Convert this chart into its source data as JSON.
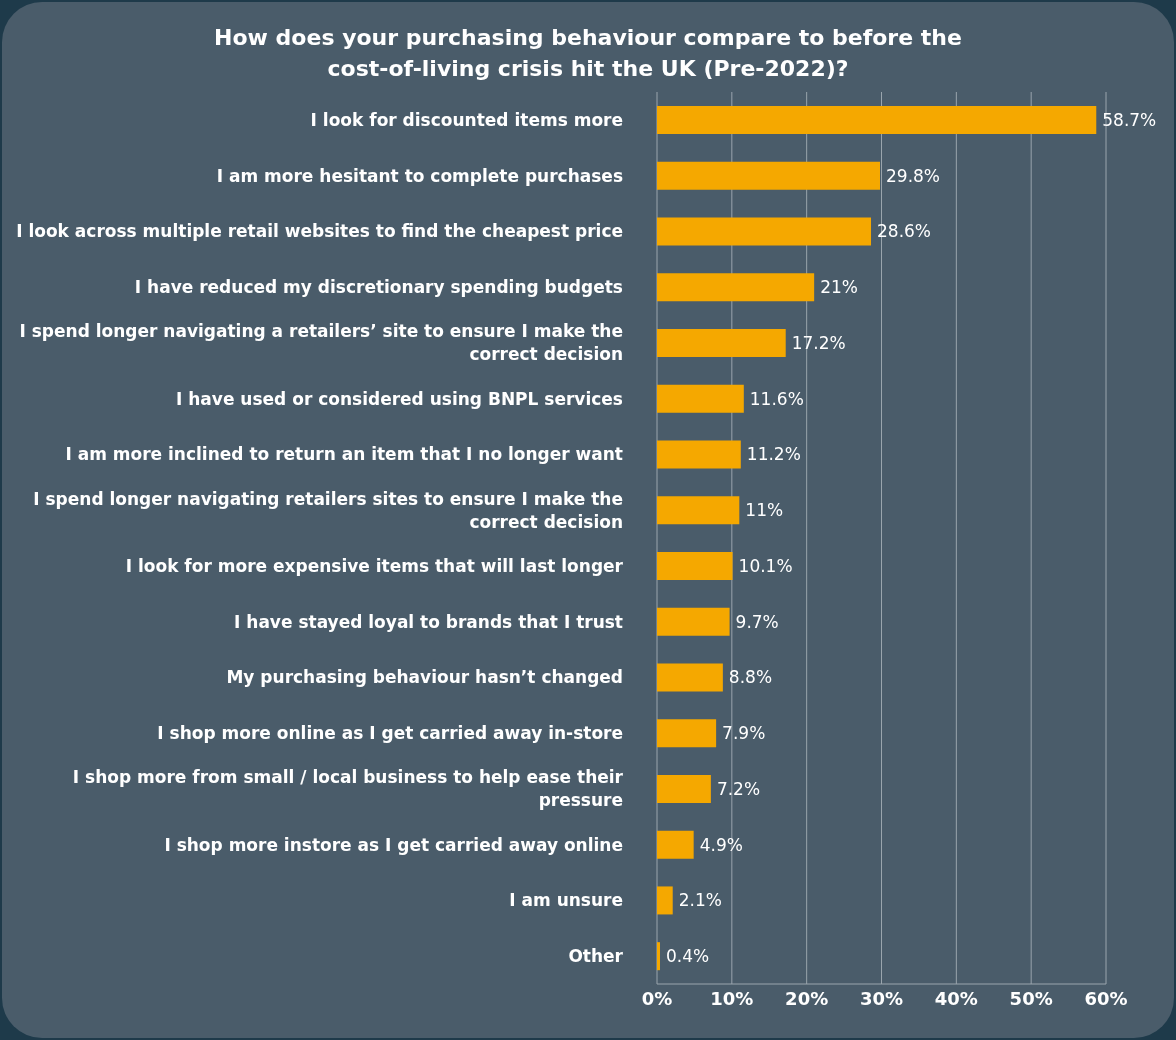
{
  "chart_data": {
    "type": "bar",
    "orientation": "horizontal",
    "title": "How does your purchasing behaviour compare to before the cost-of-living crisis hit the UK (Pre-2022)?",
    "categories": [
      "I look for discounted items more",
      "I am more hesitant to complete purchases",
      "I look across multiple retail websites to find the cheapest price",
      "I have reduced my discretionary spending budgets",
      "I spend longer navigating a retailers’ site to ensure I make the correct decision",
      "I have used or considered using BNPL services",
      "I am more inclined to return an item that I no longer want",
      "I spend longer navigating retailers sites to ensure I make the correct decision",
      "I look for more expensive items that will last longer",
      "I have stayed loyal to brands that I trust",
      "My purchasing behaviour hasn’t changed",
      "I shop more online as I get carried away in-store",
      "I shop more from small / local business to help ease their pressure",
      "I shop more instore as I get carried away online",
      "I am unsure",
      "Other"
    ],
    "values": [
      58.7,
      29.8,
      28.6,
      21,
      17.2,
      11.6,
      11.2,
      11,
      10.1,
      9.7,
      8.8,
      7.9,
      7.2,
      4.9,
      2.1,
      0.4
    ],
    "value_labels": [
      "58.7%",
      "29.8%",
      "28.6%",
      "21%",
      "17.2%",
      "11.6%",
      "11.2%",
      "11%",
      "10.1%",
      "9.7%",
      "8.8%",
      "7.9%",
      "7.2%",
      "4.9%",
      "2.1%",
      "0.4%"
    ],
    "color": "#f5a800",
    "xlim": [
      0,
      60
    ],
    "xticks": [
      {
        "value": 0,
        "label": "0%"
      },
      {
        "value": 10,
        "label": "10%"
      },
      {
        "value": 20,
        "label": "20%"
      },
      {
        "value": 30,
        "label": "30%"
      },
      {
        "value": 40,
        "label": "40%"
      },
      {
        "value": 50,
        "label": "50%"
      },
      {
        "value": 60,
        "label": "60%"
      }
    ],
    "grid": "x",
    "legend": false
  }
}
